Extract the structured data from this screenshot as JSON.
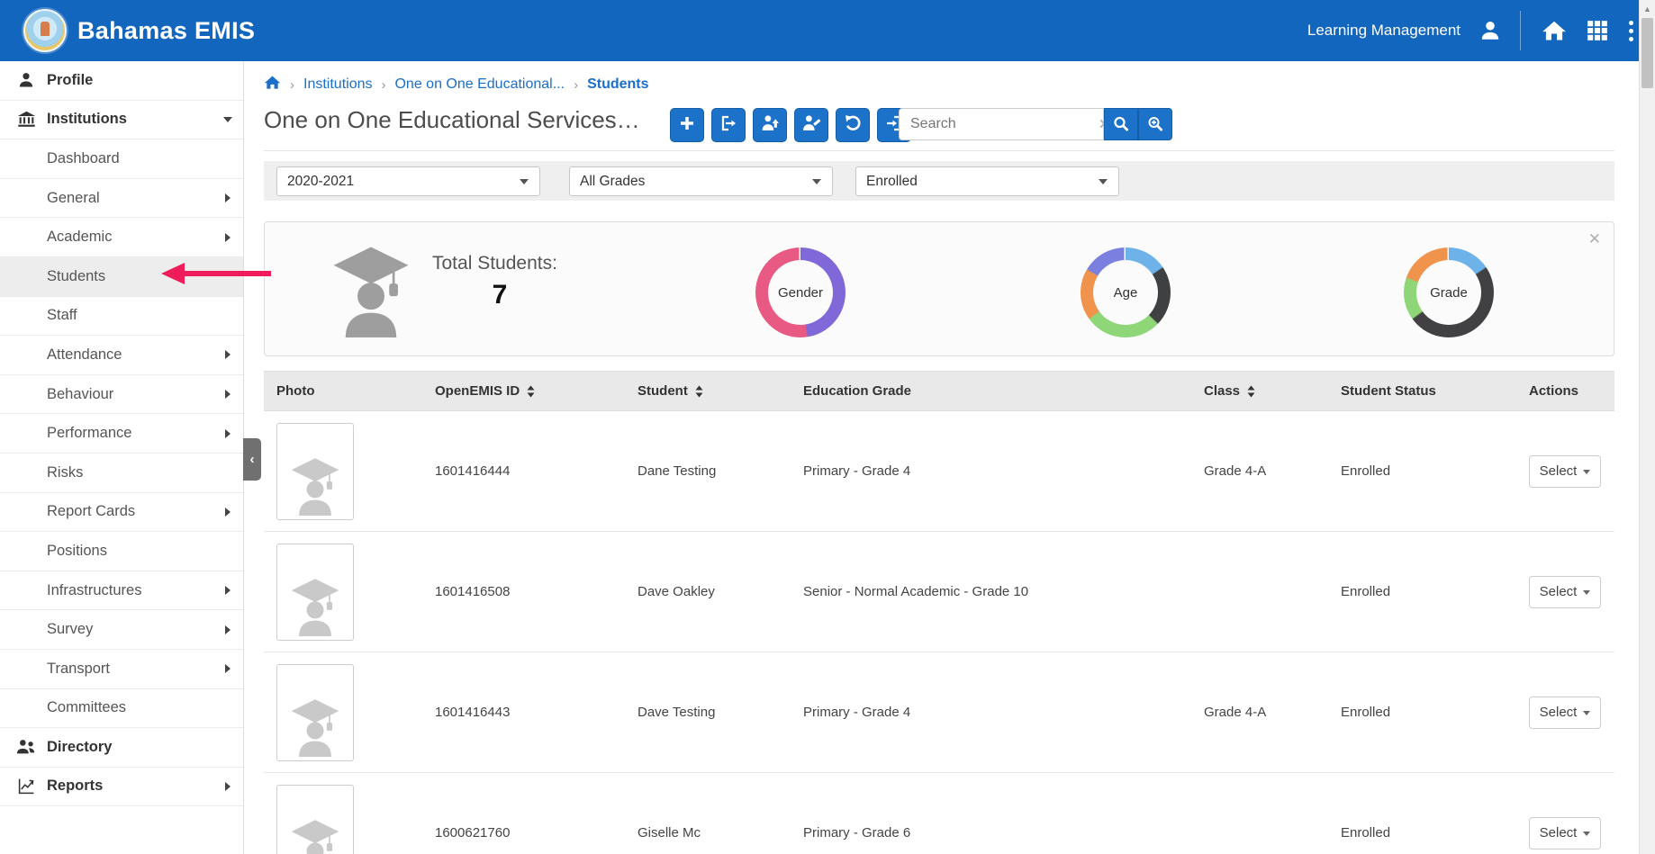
{
  "header": {
    "app_title": "Bahamas EMIS",
    "module_label": "Learning Management"
  },
  "sidebar": {
    "items": [
      {
        "label": "Profile",
        "level": 0,
        "icon": "user-icon"
      },
      {
        "label": "Institutions",
        "level": 0,
        "icon": "institution-icon",
        "caret": "down"
      },
      {
        "label": "Dashboard",
        "level": 1
      },
      {
        "label": "General",
        "level": 1,
        "caret": "right"
      },
      {
        "label": "Academic",
        "level": 1,
        "caret": "right"
      },
      {
        "label": "Students",
        "level": 1,
        "active": true
      },
      {
        "label": "Staff",
        "level": 1
      },
      {
        "label": "Attendance",
        "level": 1,
        "caret": "right"
      },
      {
        "label": "Behaviour",
        "level": 1,
        "caret": "right"
      },
      {
        "label": "Performance",
        "level": 1,
        "caret": "right"
      },
      {
        "label": "Risks",
        "level": 1
      },
      {
        "label": "Report Cards",
        "level": 1,
        "caret": "right"
      },
      {
        "label": "Positions",
        "level": 1
      },
      {
        "label": "Infrastructures",
        "level": 1,
        "caret": "right"
      },
      {
        "label": "Survey",
        "level": 1,
        "caret": "right"
      },
      {
        "label": "Transport",
        "level": 1,
        "caret": "right"
      },
      {
        "label": "Committees",
        "level": 1
      },
      {
        "label": "Directory",
        "level": 0,
        "icon": "directory-icon"
      },
      {
        "label": "Reports",
        "level": 0,
        "icon": "reports-icon",
        "caret": "right"
      }
    ]
  },
  "breadcrumb": {
    "items": [
      "Institutions",
      "One on One Educational...",
      "Students"
    ]
  },
  "page": {
    "title": "One on One Educational Services…"
  },
  "toolbar": {
    "buttons": [
      {
        "name": "add-button",
        "icon": "plus-icon"
      },
      {
        "name": "export-button",
        "icon": "export-icon"
      },
      {
        "name": "promote-students-button",
        "icon": "student-up-icon"
      },
      {
        "name": "transfer-students-button",
        "icon": "student-edit-icon"
      },
      {
        "name": "undo-button",
        "icon": "undo-icon"
      },
      {
        "name": "import-button",
        "icon": "import-icon"
      }
    ],
    "search_placeholder": "Search"
  },
  "filters": {
    "academic_period": "2020-2021",
    "grade": "All Grades",
    "status": "Enrolled"
  },
  "summary": {
    "total_label": "Total Students:",
    "total_value": "7",
    "charts": [
      {
        "label": "Gender",
        "segments": [
          {
            "color": "#8168d8",
            "from": 0,
            "to": 170
          },
          {
            "color": "#e85a84",
            "from": 172,
            "to": 358
          }
        ]
      },
      {
        "label": "Age",
        "segments": [
          {
            "color": "#6db3ea",
            "from": 2,
            "to": 55
          },
          {
            "color": "#3f4042",
            "from": 57,
            "to": 133
          },
          {
            "color": "#8ed677",
            "from": 135,
            "to": 233
          },
          {
            "color": "#f0944d",
            "from": 235,
            "to": 300
          },
          {
            "color": "#7b80e0",
            "from": 302,
            "to": 358
          }
        ]
      },
      {
        "label": "Grade",
        "segments": [
          {
            "color": "#6db3ea",
            "from": 2,
            "to": 55
          },
          {
            "color": "#414144",
            "from": 57,
            "to": 233
          },
          {
            "color": "#8ed677",
            "from": 235,
            "to": 288
          },
          {
            "color": "#f0944d",
            "from": 290,
            "to": 358
          }
        ]
      }
    ]
  },
  "table": {
    "columns": [
      {
        "label": "Photo",
        "sortable": false
      },
      {
        "label": "OpenEMIS ID",
        "sortable": true
      },
      {
        "label": "Student",
        "sortable": true
      },
      {
        "label": "Education Grade",
        "sortable": false
      },
      {
        "label": "Class",
        "sortable": true
      },
      {
        "label": "Student Status",
        "sortable": false
      },
      {
        "label": "Actions",
        "sortable": false
      }
    ],
    "rows": [
      {
        "openemis_id": "1601416444",
        "student": "Dane Testing",
        "education_grade": "Primary - Grade 4",
        "class": "Grade 4-A",
        "status": "Enrolled",
        "action": "Select"
      },
      {
        "openemis_id": "1601416508",
        "student": "Dave Oakley",
        "education_grade": "Senior - Normal Academic - Grade 10",
        "class": "",
        "status": "Enrolled",
        "action": "Select"
      },
      {
        "openemis_id": "1601416443",
        "student": "Dave Testing",
        "education_grade": "Primary - Grade 4",
        "class": "Grade 4-A",
        "status": "Enrolled",
        "action": "Select"
      },
      {
        "openemis_id": "1600621760",
        "student": "Giselle Mc",
        "education_grade": "Primary - Grade 6",
        "class": "",
        "status": "Enrolled",
        "action": "Select"
      }
    ]
  },
  "annotation": {
    "type": "arrow",
    "points_to": "Students sidebar item",
    "color": "#ee1c5b"
  },
  "colors": {
    "topbar": "#1266be",
    "accent": "#1b72c8",
    "link": "#1b6fc9"
  }
}
